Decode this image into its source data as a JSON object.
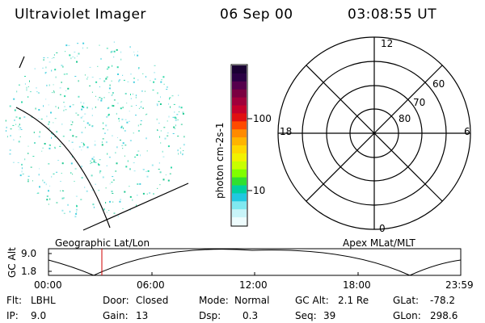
{
  "header": {
    "title": "Ultraviolet Imager",
    "date": "06 Sep 00",
    "time": "03:08:55 UT"
  },
  "left_panel": {
    "caption": "Geographic Lat/Lon"
  },
  "colorbar": {
    "unit_label": "photon cm-2s-1",
    "tick_labels": [
      "100",
      "10"
    ],
    "colors": [
      "#1a0033",
      "#2a0044",
      "#55004d",
      "#7a0040",
      "#a0003a",
      "#c4002a",
      "#e01010",
      "#ff4a00",
      "#ff8a00",
      "#ffb400",
      "#ffd800",
      "#f2f200",
      "#c8ff00",
      "#80ff00",
      "#30e030",
      "#00d0a0",
      "#20c8e0",
      "#80e8f0",
      "#c8f4f8",
      "#eefcfd"
    ]
  },
  "polar_plot": {
    "caption": "Apex MLat/MLT",
    "mlt_labels": {
      "top": "12",
      "left": "18",
      "right": "6",
      "bottom": "0"
    },
    "lat_labels": [
      "60",
      "70",
      "80"
    ]
  },
  "altitude_strip": {
    "ylabel": "GC Alt",
    "y_ticks": [
      "9.0",
      "1.8"
    ],
    "x_ticks": [
      "00:00",
      "06:00",
      "12:00",
      "18:00",
      "23:59"
    ],
    "marker_time": "03:08:55"
  },
  "info": {
    "flt_label": "Flt:",
    "flt_value": "LBHL",
    "ip_label": "IP:",
    "ip_value": "9.0",
    "door_label": "Door:",
    "door_value": "Closed",
    "gain_label": "Gain:",
    "gain_value": "13",
    "mode_label": "Mode:",
    "mode_value": "Normal",
    "dsp_label": "Dsp:",
    "dsp_value": "0.3",
    "gcalt_label": "GC Alt:",
    "gcalt_value": "2.1 Re",
    "seq_label": "Seq:",
    "seq_value": "39",
    "glat_label": "GLat:",
    "glat_value": "-78.2",
    "glon_label": "GLon:",
    "glon_value": "298.6"
  }
}
